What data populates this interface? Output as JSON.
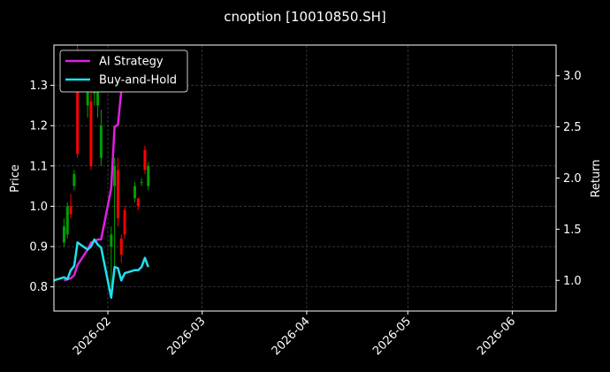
{
  "chart_data": {
    "type": "candlestick+line",
    "title": "cnoption [10010850.SH]",
    "xlabel": "",
    "ylabel_left": "Price",
    "ylabel_right": "Return",
    "x_ticks": [
      "2026-02",
      "2026-03",
      "2026-04",
      "2026-05",
      "2026-06"
    ],
    "x_tick_dates": [
      "2026-02-01",
      "2026-03-01",
      "2026-04-01",
      "2026-05-01",
      "2026-06-01"
    ],
    "xlim": [
      "2026-01-16",
      "2026-06-14"
    ],
    "ylim_left": [
      0.74,
      1.4
    ],
    "yticks_left": [
      "0.8",
      "0.9",
      "1.0",
      "1.1",
      "1.2",
      "1.3"
    ],
    "ylim_right": [
      0.7,
      3.3
    ],
    "yticks_right": [
      "1.0",
      "1.5",
      "2.0",
      "2.5",
      "3.0"
    ],
    "grid": true,
    "legend_position": "top-left",
    "colors": {
      "background": "#000000",
      "axes": "#ffffff",
      "grid": "#555555",
      "up": "#00a000",
      "down": "#ff0000",
      "strategy": "#e020e0",
      "buyhold": "#20e0f0"
    },
    "candles": [
      {
        "date": "2026-01-19",
        "open": 0.91,
        "close": 0.95,
        "high": 0.97,
        "low": 0.9
      },
      {
        "date": "2026-01-20",
        "open": 0.93,
        "close": 1.0,
        "high": 1.01,
        "low": 0.92
      },
      {
        "date": "2026-01-21",
        "open": 1.0,
        "close": 0.98,
        "high": 1.03,
        "low": 0.97
      },
      {
        "date": "2026-01-22",
        "open": 1.05,
        "close": 1.08,
        "high": 1.09,
        "low": 1.04
      },
      {
        "date": "2026-01-23",
        "open": 1.38,
        "close": 1.13,
        "high": 1.4,
        "low": 1.12
      },
      {
        "date": "2026-01-26",
        "open": 1.25,
        "close": 1.35,
        "high": 1.38,
        "low": 1.22
      },
      {
        "date": "2026-01-27",
        "open": 1.26,
        "close": 1.1,
        "high": 1.3,
        "low": 1.09
      },
      {
        "date": "2026-01-28",
        "open": 1.28,
        "close": 1.35,
        "high": 1.38,
        "low": 1.25
      },
      {
        "date": "2026-01-29",
        "open": 1.25,
        "close": 1.3,
        "high": 1.33,
        "low": 1.22
      },
      {
        "date": "2026-01-30",
        "open": 1.12,
        "close": 1.2,
        "high": 1.24,
        "low": 1.1
      },
      {
        "date": "2026-02-02",
        "open": 0.9,
        "close": 0.93,
        "high": 0.95,
        "low": 0.8
      },
      {
        "date": "2026-02-03",
        "open": 1.05,
        "close": 1.1,
        "high": 1.12,
        "low": 0.85
      },
      {
        "date": "2026-02-04",
        "open": 1.09,
        "close": 0.97,
        "high": 1.12,
        "low": 0.95
      },
      {
        "date": "2026-02-05",
        "open": 0.92,
        "close": 0.88,
        "high": 0.93,
        "low": 0.86
      },
      {
        "date": "2026-02-06",
        "open": 0.99,
        "close": 0.93,
        "high": 1.0,
        "low": 0.92
      },
      {
        "date": "2026-02-09",
        "open": 1.02,
        "close": 1.05,
        "high": 1.06,
        "low": 1.01
      },
      {
        "date": "2026-02-10",
        "open": 1.02,
        "close": 1.0,
        "high": 1.02,
        "low": 0.99
      },
      {
        "date": "2026-02-11",
        "open": 1.06,
        "close": 1.06,
        "high": 1.07,
        "low": 1.05
      },
      {
        "date": "2026-02-12",
        "open": 1.14,
        "close": 1.09,
        "high": 1.15,
        "low": 1.08
      },
      {
        "date": "2026-02-13",
        "open": 1.05,
        "close": 1.1,
        "high": 1.11,
        "low": 1.04
      }
    ],
    "series": [
      {
        "name": "AI Strategy",
        "axis": "right",
        "x": [
          "2026-01-19",
          "2026-01-20",
          "2026-01-21",
          "2026-01-22",
          "2026-01-23",
          "2026-01-26",
          "2026-01-27",
          "2026-01-28",
          "2026-01-29",
          "2026-01-30",
          "2026-02-02",
          "2026-02-03",
          "2026-02-04",
          "2026-02-05",
          "2026-02-06",
          "2026-02-09",
          "2026-02-10",
          "2026-02-11",
          "2026-02-12",
          "2026-02-13"
        ],
        "values": [
          1.0,
          1.01,
          1.02,
          1.05,
          1.15,
          1.3,
          1.37,
          1.38,
          1.4,
          1.4,
          1.9,
          2.5,
          2.52,
          2.85,
          2.9,
          2.95,
          3.0,
          3.05,
          3.15,
          3.2
        ]
      },
      {
        "name": "Buy-and-Hold",
        "axis": "right",
        "x": [
          "2026-01-16",
          "2026-01-19",
          "2026-01-20",
          "2026-01-21",
          "2026-01-22",
          "2026-01-23",
          "2026-01-26",
          "2026-01-27",
          "2026-01-28",
          "2026-01-29",
          "2026-01-30",
          "2026-02-02",
          "2026-02-03",
          "2026-02-04",
          "2026-02-05",
          "2026-02-06",
          "2026-02-09",
          "2026-02-10",
          "2026-02-11",
          "2026-02-12",
          "2026-02-13"
        ],
        "values": [
          1.0,
          1.03,
          1.01,
          1.1,
          1.14,
          1.37,
          1.3,
          1.33,
          1.4,
          1.35,
          1.32,
          0.83,
          1.13,
          1.12,
          1.0,
          1.07,
          1.1,
          1.1,
          1.13,
          1.22,
          1.13
        ]
      }
    ]
  }
}
